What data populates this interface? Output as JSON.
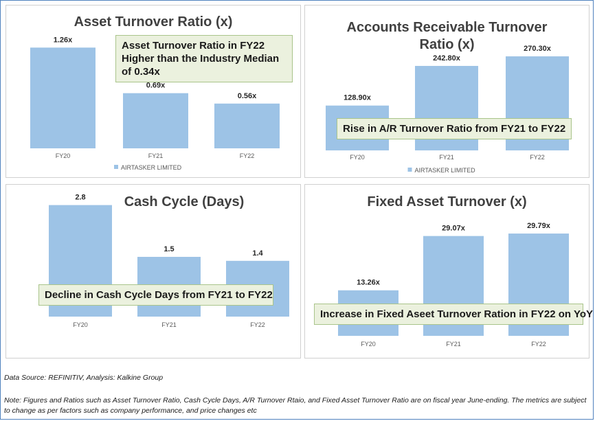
{
  "chart_data": [
    {
      "type": "bar",
      "title": "Asset Turnover Ratio (x)",
      "categories": [
        "FY20",
        "FY21",
        "FY22"
      ],
      "series": [
        {
          "name": "AIRTASKER LIMITED",
          "values": [
            1.26,
            0.69,
            0.56
          ]
        }
      ],
      "data_labels": [
        "1.26x",
        "0.69x",
        "0.56x"
      ],
      "ylim": [
        0,
        1.4
      ],
      "legend": "bottom",
      "color": "#9dc3e6",
      "annotation": "Asset Turnover Ratio in FY22 Higher than the Industry Median of 0.34x"
    },
    {
      "type": "bar",
      "title": "Accounts Receivable Turnover Ratio (x)",
      "categories": [
        "FY20",
        "FY21",
        "FY22"
      ],
      "series": [
        {
          "name": "AIRTASKER LIMITED",
          "values": [
            128.9,
            242.8,
            270.3
          ]
        }
      ],
      "data_labels": [
        "128.90x",
        "242.80x",
        "270.30x"
      ],
      "ylim": [
        0,
        300
      ],
      "legend": "bottom",
      "color": "#9dc3e6",
      "annotation": "Rise in A/R Turnover Ratio from FY21 to FY22"
    },
    {
      "type": "bar",
      "title": "Cash Cycle (Days)",
      "categories": [
        "FY20",
        "FY21",
        "FY22"
      ],
      "series": [
        {
          "values": [
            2.8,
            1.5,
            1.4
          ]
        }
      ],
      "data_labels": [
        "2.8",
        "1.5",
        "1.4"
      ],
      "ylim": [
        0,
        3.0
      ],
      "color": "#9dc3e6",
      "annotation": "Decline in Cash Cycle Days from FY21 to FY22"
    },
    {
      "type": "bar",
      "title": "Fixed Asset Turnover (x)",
      "categories": [
        "FY20",
        "FY21",
        "FY22"
      ],
      "series": [
        {
          "values": [
            13.26,
            29.07,
            29.79
          ]
        }
      ],
      "data_labels": [
        "13.26x",
        "29.07x",
        "29.79x"
      ],
      "ylim": [
        0,
        35
      ],
      "color": "#9dc3e6",
      "annotation": "Increase in Fixed Aseet Turnover Ration in FY22 on YoY"
    }
  ],
  "footer": {
    "source": "Data Source: REFINITIV, Analysis: Kalkine Group",
    "note": "Note: Figures and Ratios such as Asset Turnover Ratio, Cash Cycle Days, A/R Turnover Rtaio, and Fixed Asset Turnover Ratio are on fiscal year June-ending. The metrics are subject to change as per factors such as company performance, and price changes etc"
  }
}
